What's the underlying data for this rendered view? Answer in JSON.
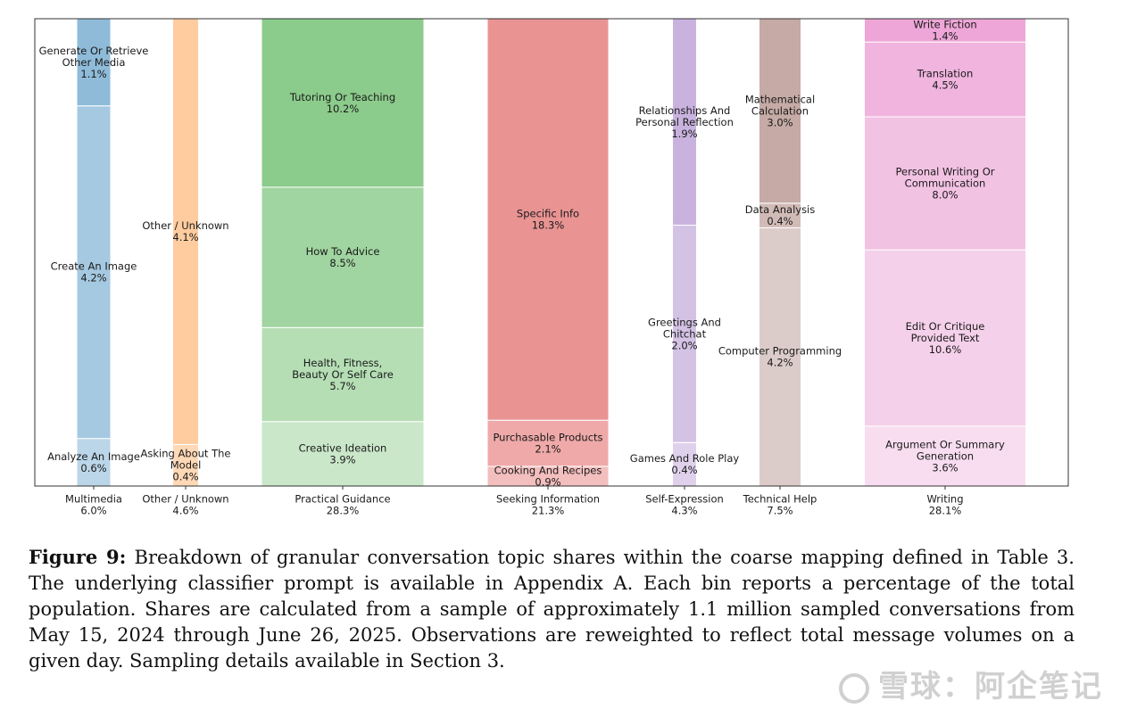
{
  "chart_data": {
    "type": "stacked-bar",
    "ylim": [
      0,
      1
    ],
    "bars": [
      {
        "name": "Multimedia",
        "total": "6.0%",
        "color": "#1f77b4",
        "segments": [
          {
            "label": [
              "Analyze An Image"
            ],
            "value": 0.6
          },
          {
            "label": [
              "Create An Image"
            ],
            "value": 4.2
          },
          {
            "label": [
              "Generate Or Retrieve",
              "Other Media"
            ],
            "value": 1.1
          }
        ]
      },
      {
        "name": "Other / Unknown",
        "total": "4.6%",
        "color": "#ff7f0e",
        "segments": [
          {
            "label": [
              "Asking About The",
              "Model"
            ],
            "value": 0.4
          },
          {
            "label": [
              "Other / Unknown"
            ],
            "value": 4.1
          }
        ]
      },
      {
        "name": "Practical Guidance",
        "total": "28.3%",
        "color": "#2ca02c",
        "segments": [
          {
            "label": [
              "Creative Ideation"
            ],
            "value": 3.9
          },
          {
            "label": [
              "Health, Fitness,",
              "Beauty Or Self Care"
            ],
            "value": 5.7
          },
          {
            "label": [
              "How To Advice"
            ],
            "value": 8.5
          },
          {
            "label": [
              "Tutoring Or Teaching"
            ],
            "value": 10.2
          }
        ]
      },
      {
        "name": "Seeking Information",
        "total": "21.3%",
        "color": "#d62728",
        "segments": [
          {
            "label": [
              "Cooking And Recipes"
            ],
            "value": 0.9
          },
          {
            "label": [
              "Purchasable Products"
            ],
            "value": 2.1
          },
          {
            "label": [
              "Specific Info"
            ],
            "value": 18.3
          }
        ]
      },
      {
        "name": "Self-Expression",
        "total": "4.3%",
        "color": "#9467bd",
        "segments": [
          {
            "label": [
              "Games And Role Play"
            ],
            "value": 0.4
          },
          {
            "label": [
              "Greetings And",
              "Chitchat"
            ],
            "value": 2.0
          },
          {
            "label": [
              "Relationships And",
              "Personal Reflection"
            ],
            "value": 1.9
          }
        ]
      },
      {
        "name": "Technical Help",
        "total": "7.5%",
        "color": "#8c564b",
        "segments": [
          {
            "label": [
              "Computer Programming"
            ],
            "value": 4.2
          },
          {
            "label": [
              "Data Analysis"
            ],
            "value": 0.4
          },
          {
            "label": [
              "Mathematical",
              "Calculation"
            ],
            "value": 3.0
          }
        ]
      },
      {
        "name": "Writing",
        "total": "28.1%",
        "color": "#e377c2",
        "segments": [
          {
            "label": [
              "Argument Or Summary",
              "Generation"
            ],
            "value": 3.6
          },
          {
            "label": [
              "Edit Or Critique",
              "Provided Text"
            ],
            "value": 10.6
          },
          {
            "label": [
              "Personal Writing Or",
              "Communication"
            ],
            "value": 8.0
          },
          {
            "label": [
              "Translation"
            ],
            "value": 4.5
          },
          {
            "label": [
              "Write Fiction"
            ],
            "value": 1.4
          }
        ]
      }
    ]
  },
  "caption": {
    "label": "Figure 9:",
    "text": "Breakdown of granular conversation topic shares within the coarse mapping defined in Table 3. The underlying classifier prompt is available in Appendix A. Each bin reports a percentage of the total population. Shares are calculated from a sample of approximately 1.1 million sampled conversations from May 15, 2024 through June 26, 2025. Observations are reweighted to reflect total message volumes on a given day. Sampling details available in Section 3."
  },
  "watermark": {
    "text": "雪球：阿企笔记"
  }
}
